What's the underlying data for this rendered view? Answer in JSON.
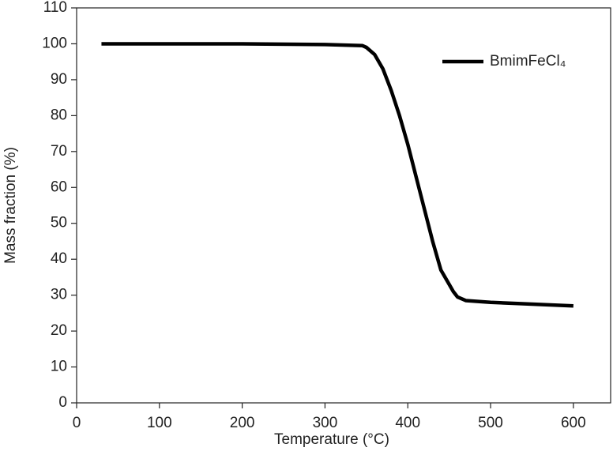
{
  "chart_data": {
    "type": "line",
    "x_label": "Temperature (°C)",
    "y_label": "Mass fraction (%)",
    "x": [
      30,
      100,
      200,
      300,
      345,
      350,
      360,
      370,
      380,
      390,
      400,
      410,
      420,
      430,
      440,
      450,
      455,
      460,
      470,
      500,
      550,
      600
    ],
    "series": [
      {
        "name": "BmimFeCl₄",
        "color": "#000000",
        "values": [
          100,
          100,
          100,
          99.8,
          99.5,
          99,
          97,
          93,
          87,
          80,
          72,
          63,
          54,
          45,
          37,
          33,
          31,
          29.5,
          28.5,
          28,
          27.5,
          27
        ]
      }
    ],
    "xlim": [
      0,
      645
    ],
    "ylim": [
      0,
      110
    ],
    "xticks": [
      0,
      100,
      200,
      300,
      400,
      500,
      600
    ],
    "yticks": [
      0,
      10,
      20,
      30,
      40,
      50,
      60,
      70,
      80,
      90,
      100,
      110
    ],
    "legend": "upper right"
  }
}
